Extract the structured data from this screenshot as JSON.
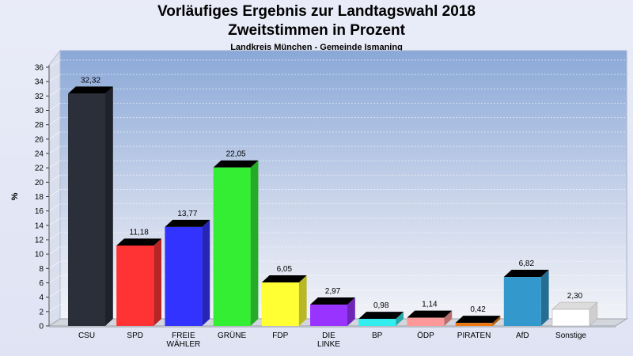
{
  "header": {
    "title": "Vorläufiges Ergebnis zur Landtagswahl 2018",
    "subtitle": "Zweitstimmen in Prozent",
    "caption": "Landkreis München - Gemeinde Ismaning"
  },
  "chart_data": {
    "type": "bar",
    "title": "Vorläufiges Ergebnis zur Landtagswahl 2018",
    "subtitle": "Zweitstimmen in Prozent",
    "ylabel": "%",
    "xlabel": "",
    "ylim": [
      0,
      36
    ],
    "yticks": [
      0,
      2,
      4,
      6,
      8,
      10,
      12,
      14,
      16,
      18,
      20,
      22,
      24,
      26,
      28,
      30,
      32,
      34,
      36
    ],
    "grid": true,
    "categories": [
      "CSU",
      "SPD",
      "FREIE WÄHLER",
      "GRÜNE",
      "FDP",
      "DIE LINKE",
      "BP",
      "ÖDP",
      "PIRATEN",
      "AfD",
      "Sonstige"
    ],
    "category_lines": [
      [
        "CSU"
      ],
      [
        "SPD"
      ],
      [
        "FREIE",
        "WÄHLER"
      ],
      [
        "GRÜNE"
      ],
      [
        "FDP"
      ],
      [
        "DIE",
        "LINKE"
      ],
      [
        "BP"
      ],
      [
        "ÖDP"
      ],
      [
        "PIRATEN"
      ],
      [
        "AfD"
      ],
      [
        "Sonstige"
      ]
    ],
    "values": [
      32.32,
      11.18,
      13.77,
      22.05,
      6.05,
      2.97,
      0.98,
      1.14,
      0.42,
      6.82,
      2.3
    ],
    "value_labels": [
      "32,32",
      "11,18",
      "13,77",
      "22,05",
      "6,05",
      "2,97",
      "0,98",
      "1,14",
      "0,42",
      "6,82",
      "2,30"
    ],
    "colors": [
      "#2b2f3a",
      "#ff3333",
      "#3333ff",
      "#33ee33",
      "#ffff33",
      "#9933ff",
      "#33eeee",
      "#ff9999",
      "#ee7711",
      "#3399cc",
      "#ffffff"
    ]
  }
}
